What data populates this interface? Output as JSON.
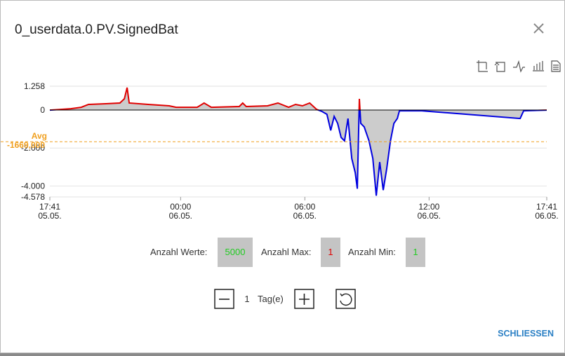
{
  "dialog": {
    "title": "0_userdata.0.PV.SignedBat",
    "close_button": "SCHLIESSEN"
  },
  "chart_data": {
    "type": "area",
    "x": [
      "05.05. 17:41",
      "05.05. 18:12",
      "05.05. 18:42",
      "05.05. 19:12",
      "05.05. 19:33",
      "05.05. 20:24",
      "05.05. 21:04",
      "05.05. 21:17",
      "05.05. 21:25",
      "05.05. 21:31",
      "05.05. 22:26",
      "05.05. 23:27",
      "05.05. 23:47",
      "06.05. 00:48",
      "06.05. 01:08",
      "06.05. 01:29",
      "06.05. 02:50",
      "06.05. 03:00",
      "06.05. 03:10",
      "06.05. 04:12",
      "06.05. 04:42",
      "06.05. 05:13",
      "06.05. 05:33",
      "06.05. 05:53",
      "06.05. 06:14",
      "06.05. 06:34",
      "06.05. 06:50",
      "06.05. 07:04",
      "06.05. 07:15",
      "06.05. 07:25",
      "06.05. 07:35",
      "06.05. 07:45",
      "06.05. 07:55",
      "06.05. 08:05",
      "06.05. 08:16",
      "06.05. 08:26",
      "06.05. 08:32",
      "06.05. 08:38",
      "06.05. 08:42",
      "06.05. 08:52",
      "06.05. 09:06",
      "06.05. 09:17",
      "06.05. 09:27",
      "06.05. 09:37",
      "06.05. 09:47",
      "06.05. 09:57",
      "06.05. 10:08",
      "06.05. 10:18",
      "06.05. 10:28",
      "06.05. 10:34",
      "06.05. 11:39",
      "06.05. 16:24",
      "06.05. 16:34",
      "06.05. 17:41"
    ],
    "series": [
      {
        "values": [
          0,
          37,
          74,
          148,
          296,
          333,
          370,
          592,
          1184,
          370,
          296,
          222,
          148,
          148,
          370,
          148,
          185,
          370,
          185,
          222,
          370,
          148,
          296,
          222,
          370,
          37,
          -74,
          -222,
          -1073,
          -333,
          -703,
          -1443,
          -1628,
          -444,
          -2553,
          -3293,
          -4144,
          592,
          -703,
          -888,
          -1628,
          -2553,
          -4514,
          -2738,
          -4218,
          -3108,
          -1628,
          -703,
          -444,
          -37,
          -37,
          -444,
          -37,
          0
        ],
        "color_positive": "#e00000",
        "color_negative": "#0000e0"
      }
    ],
    "fill": "#cccccc",
    "xlim": [
      "05.05. 17:41",
      "06.05. 17:41"
    ],
    "xticks": [
      {
        "value": "05.05. 17:41",
        "label": "17:41\n05.05."
      },
      {
        "value": "06.05. 00:00",
        "label": "00:00\n06.05."
      },
      {
        "value": "06.05. 06:00",
        "label": "06:00\n06.05."
      },
      {
        "value": "06.05. 12:00",
        "label": "12:00\n06.05."
      },
      {
        "value": "06.05. 17:41",
        "label": "17:41\n06.05."
      }
    ],
    "ylim": [
      -4578,
      1258
    ],
    "yticks": [
      {
        "value": 1258,
        "label": "1.258"
      },
      0,
      {
        "value": -2000,
        "label": "-2.000"
      },
      {
        "value": -4000,
        "label": "-4.000"
      },
      {
        "value": -4578,
        "label": "-4.578"
      }
    ],
    "grid": true,
    "average": {
      "label": "Avg",
      "value": -1669,
      "value_label": "-1669,000",
      "color": "#f0a020"
    }
  },
  "stats": [
    {
      "label": "Anzahl Werte:",
      "value": 5000,
      "color": "#22cc22"
    },
    {
      "label": "Anzahl Max:",
      "value": 1,
      "color": "#e00000"
    },
    {
      "label": "Anzahl Min:",
      "value": 1,
      "color": "#22cc22"
    }
  ],
  "range": {
    "value": 1,
    "unit": "Tag(e)"
  }
}
